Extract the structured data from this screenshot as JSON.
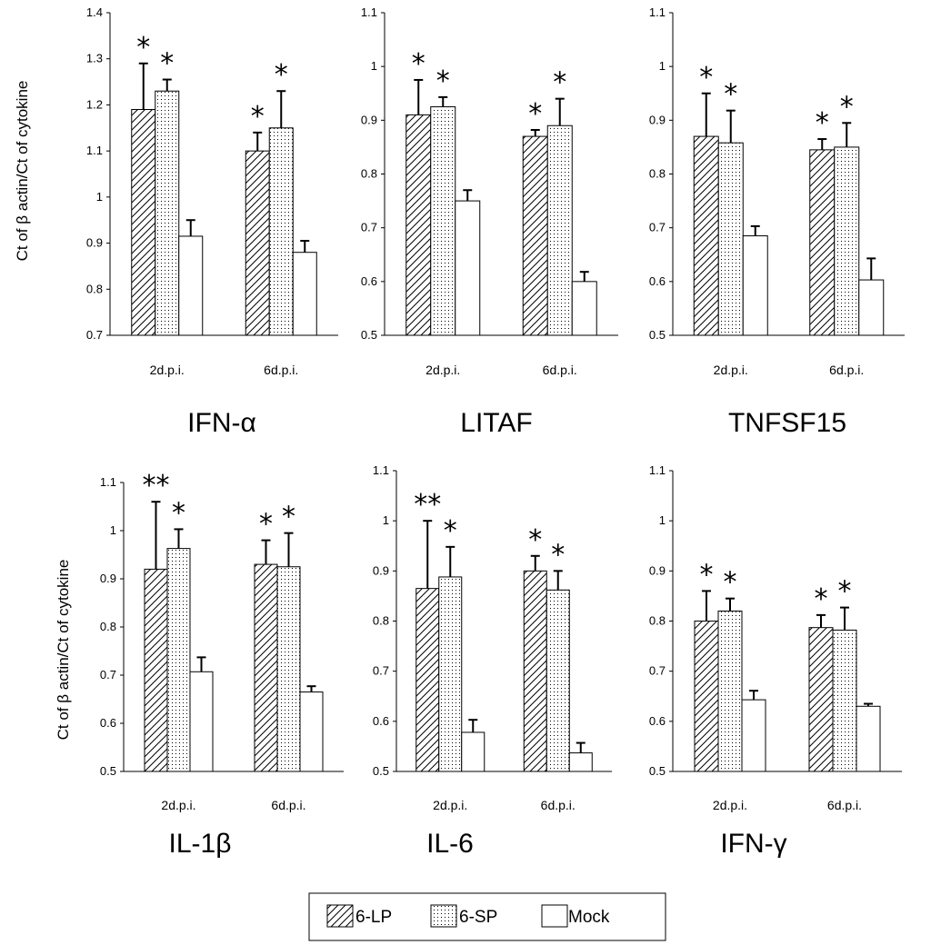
{
  "figure": {
    "ylabel": "Ct of β actin/Ct of cytokine",
    "legend": {
      "position": "bottom-center",
      "entries": [
        {
          "key": "6lp",
          "label": "6-LP",
          "pattern": "diagonal-hatch"
        },
        {
          "key": "6sp",
          "label": "6-SP",
          "pattern": "dots"
        },
        {
          "key": "mock",
          "label": "Mock",
          "pattern": "white"
        }
      ]
    }
  },
  "chart_data": [
    {
      "type": "bar",
      "title": "IFN-α",
      "ylabel": "Ct of β actin/Ct of cytokine",
      "categories": [
        "2d.p.i.",
        "6d.p.i."
      ],
      "ylim": [
        0.7,
        1.4
      ],
      "yticks": [
        "0.7",
        "0.8",
        "0.9",
        "1",
        "1.1",
        "1.2",
        "1.3",
        "1.4"
      ],
      "series": [
        {
          "name": "6-LP",
          "values": [
            1.19,
            1.1
          ],
          "errors": [
            0.1,
            0.04
          ],
          "significance": [
            "*",
            "*"
          ]
        },
        {
          "name": "6-SP",
          "values": [
            1.23,
            1.15
          ],
          "errors": [
            0.025,
            0.08
          ],
          "significance": [
            "*",
            "*"
          ]
        },
        {
          "name": "Mock",
          "values": [
            0.915,
            0.88
          ],
          "errors": [
            0.035,
            0.025
          ],
          "significance": [
            "",
            ""
          ]
        }
      ]
    },
    {
      "type": "bar",
      "title": "LITAF",
      "ylabel": "",
      "categories": [
        "2d.p.i.",
        "6d.p.i."
      ],
      "ylim": [
        0.5,
        1.1
      ],
      "yticks": [
        "0.5",
        "0.6",
        "0.7",
        "0.8",
        "0.9",
        "1",
        "1.1"
      ],
      "series": [
        {
          "name": "6-LP",
          "values": [
            0.91,
            0.87
          ],
          "errors": [
            0.065,
            0.012
          ],
          "significance": [
            "*",
            "*"
          ]
        },
        {
          "name": "6-SP",
          "values": [
            0.925,
            0.89
          ],
          "errors": [
            0.018,
            0.05
          ],
          "significance": [
            "*",
            "*"
          ]
        },
        {
          "name": "Mock",
          "values": [
            0.75,
            0.6
          ],
          "errors": [
            0.02,
            0.018
          ],
          "significance": [
            "",
            ""
          ]
        }
      ]
    },
    {
      "type": "bar",
      "title": "TNFSF15",
      "ylabel": "",
      "categories": [
        "2d.p.i.",
        "6d.p.i."
      ],
      "ylim": [
        0.5,
        1.1
      ],
      "yticks": [
        "0.5",
        "0.6",
        "0.7",
        "0.8",
        "0.9",
        "1",
        "1.1"
      ],
      "series": [
        {
          "name": "6-LP",
          "values": [
            0.87,
            0.845
          ],
          "errors": [
            0.08,
            0.02
          ],
          "significance": [
            "*",
            "*"
          ]
        },
        {
          "name": "6-SP",
          "values": [
            0.858,
            0.85
          ],
          "errors": [
            0.06,
            0.045
          ],
          "significance": [
            "*",
            "*"
          ]
        },
        {
          "name": "Mock",
          "values": [
            0.685,
            0.603
          ],
          "errors": [
            0.018,
            0.04
          ],
          "significance": [
            "",
            ""
          ]
        }
      ]
    },
    {
      "type": "bar",
      "title": "IL-1β",
      "ylabel": "Ct of β actin/Ct of cytokine",
      "categories": [
        "2d.p.i.",
        "6d.p.i."
      ],
      "ylim": [
        0.5,
        1.1
      ],
      "yticks": [
        "0.5",
        "0.6",
        "0.7",
        "0.8",
        "0.9",
        "1",
        "1.1"
      ],
      "series": [
        {
          "name": "6-LP",
          "values": [
            0.92,
            0.93
          ],
          "errors": [
            0.14,
            0.05
          ],
          "significance": [
            "**",
            "*"
          ]
        },
        {
          "name": "6-SP",
          "values": [
            0.963,
            0.925
          ],
          "errors": [
            0.04,
            0.07
          ],
          "significance": [
            "*",
            "*"
          ]
        },
        {
          "name": "Mock",
          "values": [
            0.707,
            0.665
          ],
          "errors": [
            0.03,
            0.012
          ],
          "significance": [
            "",
            ""
          ]
        }
      ]
    },
    {
      "type": "bar",
      "title": "IL-6",
      "ylabel": "",
      "categories": [
        "2d.p.i.",
        "6d.p.i."
      ],
      "ylim": [
        0.5,
        1.1
      ],
      "yticks": [
        "0.5",
        "0.6",
        "0.7",
        "0.8",
        "0.9",
        "1",
        "1.1"
      ],
      "series": [
        {
          "name": "6-LP",
          "values": [
            0.865,
            0.9
          ],
          "errors": [
            0.135,
            0.03
          ],
          "significance": [
            "**",
            "*"
          ]
        },
        {
          "name": "6-SP",
          "values": [
            0.888,
            0.862
          ],
          "errors": [
            0.06,
            0.038
          ],
          "significance": [
            "*",
            "*"
          ]
        },
        {
          "name": "Mock",
          "values": [
            0.578,
            0.537
          ],
          "errors": [
            0.025,
            0.02
          ],
          "significance": [
            "",
            ""
          ]
        }
      ]
    },
    {
      "type": "bar",
      "title": "IFN-γ",
      "ylabel": "",
      "categories": [
        "2d.p.i.",
        "6d.p.i."
      ],
      "ylim": [
        0.5,
        1.1
      ],
      "yticks": [
        "0.5",
        "0.6",
        "0.7",
        "0.8",
        "0.9",
        "1",
        "1.1"
      ],
      "series": [
        {
          "name": "6-LP",
          "values": [
            0.8,
            0.787
          ],
          "errors": [
            0.06,
            0.025
          ],
          "significance": [
            "*",
            "*"
          ]
        },
        {
          "name": "6-SP",
          "values": [
            0.82,
            0.782
          ],
          "errors": [
            0.025,
            0.045
          ],
          "significance": [
            "*",
            "*"
          ]
        },
        {
          "name": "Mock",
          "values": [
            0.643,
            0.63
          ],
          "errors": [
            0.018,
            0.005
          ],
          "significance": [
            "",
            ""
          ]
        }
      ]
    }
  ]
}
